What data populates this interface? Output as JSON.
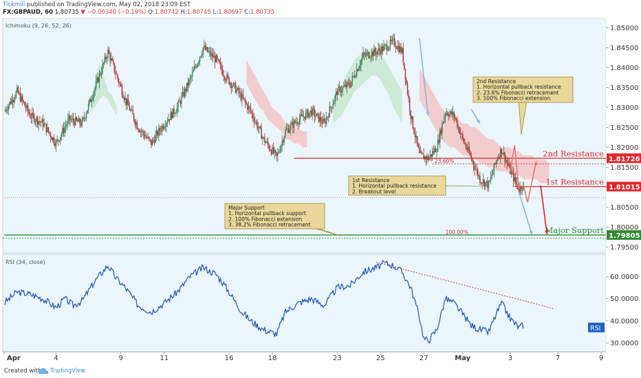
{
  "header": {
    "publisher": "Tickmill",
    "published_text": "published on TradingView.com, May 02, 2018 23:09 EST",
    "symbol": "FX:GBPAUD, 60",
    "last": "1.80735",
    "change": "−0.00340 (−0.19%)",
    "o_label": "O:",
    "o_value": "1.80742",
    "h_label": "H:",
    "h_value": "1.80745",
    "l_label": "L:",
    "l_value": "1.80697",
    "c_label": "C:",
    "c_value": "1.80735"
  },
  "footer": {
    "created_with": "Created with",
    "brand": "TradingView"
  },
  "colors": {
    "up": "#2e7d4f",
    "down": "#b02a2a",
    "cloud_red": "#f4c6c6",
    "cloud_green": "#c7e7cf",
    "panel_bg": "#eaf6fb",
    "resistance": "#e0262a",
    "support": "#2f8a2f",
    "note_bg": "#e9d89a",
    "note_border": "#a08a3c",
    "rsi_line": "#1f4fbf",
    "rsi_badge": "#1f5fbf"
  },
  "chart_data": [
    {
      "type": "candlestick",
      "title": "",
      "indicator_label": "Ichimoku (9, 26, 52, 26)",
      "ylim": [
        1.7935,
        1.8525
      ],
      "y_ticks": [
        "1.85000",
        "1.84500",
        "1.84000",
        "1.83500",
        "1.83000",
        "1.82500",
        "1.82000",
        "1.81500",
        "1.81000",
        "1.80500",
        "1.80000",
        "1.79500"
      ],
      "x_ticks": [
        "Apr",
        "4",
        "9",
        "11",
        "16",
        "18",
        "23",
        "25",
        "27",
        "May",
        "3",
        "7",
        "9"
      ],
      "price_path": [
        [
          0,
          1.829
        ],
        [
          3,
          1.834
        ],
        [
          6,
          1.828
        ],
        [
          9,
          1.826
        ],
        [
          12,
          1.821
        ],
        [
          15,
          1.827
        ],
        [
          18,
          1.826
        ],
        [
          21,
          1.835
        ],
        [
          24,
          1.844
        ],
        [
          26,
          1.838
        ],
        [
          28,
          1.832
        ],
        [
          31,
          1.825
        ],
        [
          34,
          1.821
        ],
        [
          37,
          1.826
        ],
        [
          40,
          1.83
        ],
        [
          43,
          1.837
        ],
        [
          46,
          1.845
        ],
        [
          49,
          1.842
        ],
        [
          51,
          1.838
        ],
        [
          54,
          1.834
        ],
        [
          57,
          1.829
        ],
        [
          60,
          1.822
        ],
        [
          63,
          1.8175
        ],
        [
          65,
          1.824
        ],
        [
          68,
          1.827
        ],
        [
          71,
          1.829
        ],
        [
          74,
          1.826
        ],
        [
          77,
          1.834
        ],
        [
          80,
          1.836
        ],
        [
          83,
          1.843
        ],
        [
          86,
          1.844
        ],
        [
          88,
          1.845
        ],
        [
          90,
          1.8465
        ],
        [
          92,
          1.844
        ],
        [
          94,
          1.828
        ],
        [
          96,
          1.818
        ],
        [
          98,
          1.8172
        ],
        [
          100,
          1.82
        ],
        [
          102,
          1.829
        ],
        [
          104,
          1.828
        ],
        [
          106,
          1.822
        ],
        [
          108,
          1.8172
        ],
        [
          110,
          1.812
        ],
        [
          112,
          1.8105
        ],
        [
          114,
          1.8175
        ],
        [
          115,
          1.8195
        ],
        [
          117,
          1.814
        ],
        [
          119,
          1.8095
        ],
        [
          120,
          1.8107
        ]
      ],
      "ichimoku_cloud": [
        {
          "from": 20,
          "to": 26,
          "kind": "green",
          "top": [
            1.832,
            1.836,
            1.841,
            1.838,
            1.834,
            1.833,
            1.83
          ],
          "bottom": [
            1.829,
            1.83,
            1.832,
            1.833,
            1.832,
            1.83,
            1.828
          ]
        },
        {
          "from": 56,
          "to": 70,
          "kind": "red",
          "top": [
            1.842,
            1.84,
            1.838,
            1.836,
            1.834,
            1.832,
            1.83,
            1.829,
            1.828,
            1.826,
            1.826,
            1.825,
            1.825,
            1.824,
            1.824
          ],
          "bottom": [
            1.836,
            1.834,
            1.832,
            1.83,
            1.829,
            1.827,
            1.826,
            1.825,
            1.824,
            1.822,
            1.822,
            1.821,
            1.821,
            1.82,
            1.82
          ]
        },
        {
          "from": 76,
          "to": 92,
          "kind": "green",
          "top": [
            1.83,
            1.832,
            1.835,
            1.838,
            1.84,
            1.842,
            1.843,
            1.844,
            1.844,
            1.845,
            1.845,
            1.843,
            1.842,
            1.84,
            1.838,
            1.836,
            1.834
          ],
          "bottom": [
            1.826,
            1.827,
            1.828,
            1.83,
            1.832,
            1.834,
            1.835,
            1.836,
            1.837,
            1.838,
            1.838,
            1.837,
            1.835,
            1.833,
            1.83,
            1.828,
            1.826
          ]
        },
        {
          "from": 96,
          "to": 126,
          "kind": "red",
          "top": [
            1.84,
            1.838,
            1.836,
            1.834,
            1.832,
            1.83,
            1.829,
            1.828,
            1.828,
            1.827,
            1.826,
            1.826,
            1.825,
            1.825,
            1.824,
            1.823,
            1.822,
            1.822,
            1.821,
            1.82,
            1.82,
            1.82,
            1.819,
            1.819,
            1.818,
            1.818,
            1.818,
            1.817,
            1.817,
            1.817,
            1.816
          ],
          "bottom": [
            1.832,
            1.83,
            1.828,
            1.826,
            1.824,
            1.822,
            1.821,
            1.82,
            1.82,
            1.819,
            1.818,
            1.818,
            1.817,
            1.817,
            1.816,
            1.816,
            1.815,
            1.815,
            1.814,
            1.814,
            1.814,
            1.813,
            1.813,
            1.813,
            1.812,
            1.812,
            1.812,
            1.812,
            1.811,
            1.811,
            1.811
          ]
        }
      ],
      "levels": [
        {
          "name": "2nd Resistance",
          "value": 1.81726,
          "label": "1.81726",
          "color": "resistance",
          "from_x": 67
        },
        {
          "name": "1st Resistance",
          "value": 1.81015,
          "label": "1.81015",
          "color": "resistance",
          "from_x": 118
        },
        {
          "name": "Major Support",
          "value": 1.798,
          "label": "1.79805",
          "color": "support",
          "from_x": 0
        }
      ],
      "current_price": 1.80735,
      "fib_labels": [
        {
          "text": "23.60%",
          "x": 99.5,
          "y": 1.8159
        },
        {
          "text": "100.00%",
          "x": 102,
          "y": 1.7981
        }
      ],
      "projection_arrows": [
        {
          "color": "#e47878",
          "points": [
            [
              120,
              1.8107
            ],
            [
              121,
              1.8062
            ],
            [
              123,
              1.8165
            ]
          ]
        },
        {
          "color": "#e47878",
          "points": [
            [
              117,
              1.814
            ],
            [
              118,
              1.8205
            ],
            [
              119,
              1.8095
            ]
          ]
        },
        {
          "color": "#e01d1d",
          "points": [
            [
              124,
              1.8105
            ],
            [
              125.5,
              1.7982
            ]
          ]
        },
        {
          "color": "#8ab4e6",
          "points": [
            [
              96,
              1.8475
            ],
            [
              98,
              1.828
            ]
          ]
        },
        {
          "color": "#8ab4e6",
          "points": [
            [
              108,
              1.8295
            ],
            [
              110,
              1.826
            ]
          ]
        },
        {
          "color": "#8ab4e6",
          "points": [
            [
              119,
              1.8088
            ],
            [
              122,
              1.7981
            ]
          ]
        }
      ],
      "notes": [
        {
          "lines": [
            "2nd Resistance",
            "1. Horizontal pullback resistance",
            "2. 23.6% Fibonacci retracement",
            "3. 100% Fibonacci extension"
          ]
        },
        {
          "lines": [
            "1st Resistance",
            "1. Horizontal pullback resistance",
            "2. Breakout level"
          ]
        },
        {
          "lines": [
            "Major Support",
            "1. Horizontal pullback support",
            "2. 100% Fibonacci extension",
            "3. 38.2% Fibonacci retracement"
          ]
        }
      ]
    },
    {
      "type": "line",
      "title": "",
      "indicator_label": "RSI (34, close)",
      "badge": "RSI",
      "ylim": [
        26,
        70
      ],
      "y_ticks": [
        "60.0000",
        "50.0000",
        "40.0000",
        "30.0000"
      ],
      "path": [
        [
          0,
          48
        ],
        [
          3,
          53
        ],
        [
          6,
          52
        ],
        [
          9,
          50
        ],
        [
          12,
          46
        ],
        [
          14,
          50
        ],
        [
          16,
          47
        ],
        [
          18,
          49
        ],
        [
          21,
          58
        ],
        [
          24,
          65
        ],
        [
          26,
          59
        ],
        [
          28,
          55
        ],
        [
          31,
          47
        ],
        [
          34,
          44
        ],
        [
          37,
          48
        ],
        [
          40,
          53
        ],
        [
          43,
          60
        ],
        [
          46,
          64
        ],
        [
          49,
          61
        ],
        [
          51,
          56
        ],
        [
          53,
          50
        ],
        [
          55,
          44
        ],
        [
          57,
          40
        ],
        [
          60,
          36
        ],
        [
          63,
          34
        ],
        [
          65,
          44
        ],
        [
          68,
          48
        ],
        [
          71,
          50
        ],
        [
          74,
          47
        ],
        [
          77,
          55
        ],
        [
          80,
          56
        ],
        [
          83,
          62
        ],
        [
          86,
          64
        ],
        [
          88,
          66
        ],
        [
          90,
          65
        ],
        [
          92,
          62
        ],
        [
          94,
          55
        ],
        [
          96,
          42
        ],
        [
          97,
          32
        ],
        [
          98,
          31
        ],
        [
          100,
          36
        ],
        [
          102,
          50
        ],
        [
          104,
          48
        ],
        [
          106,
          43
        ],
        [
          108,
          38
        ],
        [
          110,
          36
        ],
        [
          112,
          35
        ],
        [
          114,
          44
        ],
        [
          115,
          48
        ],
        [
          117,
          41
        ],
        [
          119,
          37
        ],
        [
          120,
          38
        ]
      ],
      "trendline": [
        [
          86,
          66.5
        ],
        [
          127,
          45.5
        ]
      ],
      "current": 37
    }
  ]
}
